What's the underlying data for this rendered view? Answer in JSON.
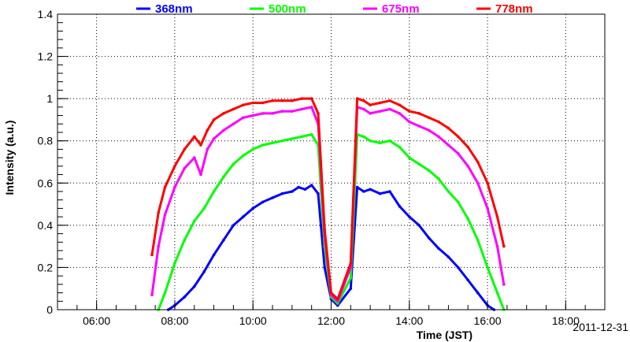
{
  "chart_data": {
    "type": "scatter",
    "title": "",
    "xlabel": "Time (JST)",
    "ylabel": "Intensity (a.u.)",
    "date_label": "2011-12-31",
    "xlim": [
      "05:00",
      "19:00"
    ],
    "ylim": [
      0,
      1.4
    ],
    "grid": true,
    "legend_position": "top",
    "x_ticks": [
      "06:00",
      "08:00",
      "10:00",
      "12:00",
      "14:00",
      "16:00",
      "18:00"
    ],
    "y_ticks": [
      "0",
      "0.2",
      "0.4",
      "0.6",
      "0.8",
      "1",
      "1.2",
      "1.4"
    ],
    "series": [
      {
        "name": "368nm",
        "color": "#0000ff",
        "points": [
          [
            "07:50",
            0.0
          ],
          [
            "08:00",
            0.02
          ],
          [
            "08:15",
            0.06
          ],
          [
            "08:30",
            0.11
          ],
          [
            "08:45",
            0.18
          ],
          [
            "09:00",
            0.26
          ],
          [
            "09:15",
            0.33
          ],
          [
            "09:30",
            0.4
          ],
          [
            "09:45",
            0.44
          ],
          [
            "10:00",
            0.48
          ],
          [
            "10:15",
            0.51
          ],
          [
            "10:30",
            0.53
          ],
          [
            "10:45",
            0.55
          ],
          [
            "11:00",
            0.56
          ],
          [
            "11:10",
            0.58
          ],
          [
            "11:20",
            0.57
          ],
          [
            "11:30",
            0.59
          ],
          [
            "11:40",
            0.55
          ],
          [
            "11:50",
            0.2
          ],
          [
            "12:00",
            0.05
          ],
          [
            "12:10",
            0.02
          ],
          [
            "12:30",
            0.1
          ],
          [
            "12:40",
            0.58
          ],
          [
            "12:50",
            0.56
          ],
          [
            "13:00",
            0.57
          ],
          [
            "13:15",
            0.55
          ],
          [
            "13:30",
            0.56
          ],
          [
            "13:45",
            0.49
          ],
          [
            "14:00",
            0.44
          ],
          [
            "14:15",
            0.4
          ],
          [
            "14:30",
            0.34
          ],
          [
            "14:45",
            0.29
          ],
          [
            "15:00",
            0.25
          ],
          [
            "15:15",
            0.2
          ],
          [
            "15:30",
            0.14
          ],
          [
            "15:45",
            0.08
          ],
          [
            "16:00",
            0.02
          ],
          [
            "16:10",
            0.0
          ]
        ]
      },
      {
        "name": "500nm",
        "color": "#00ff00",
        "points": [
          [
            "07:35",
            0.0
          ],
          [
            "07:45",
            0.08
          ],
          [
            "08:00",
            0.22
          ],
          [
            "08:15",
            0.33
          ],
          [
            "08:30",
            0.42
          ],
          [
            "08:45",
            0.48
          ],
          [
            "09:00",
            0.56
          ],
          [
            "09:15",
            0.63
          ],
          [
            "09:30",
            0.69
          ],
          [
            "09:45",
            0.73
          ],
          [
            "10:00",
            0.76
          ],
          [
            "10:15",
            0.78
          ],
          [
            "10:30",
            0.79
          ],
          [
            "10:45",
            0.8
          ],
          [
            "11:00",
            0.81
          ],
          [
            "11:15",
            0.82
          ],
          [
            "11:30",
            0.83
          ],
          [
            "11:40",
            0.78
          ],
          [
            "11:50",
            0.3
          ],
          [
            "12:00",
            0.06
          ],
          [
            "12:10",
            0.03
          ],
          [
            "12:30",
            0.15
          ],
          [
            "12:40",
            0.83
          ],
          [
            "12:50",
            0.82
          ],
          [
            "13:00",
            0.8
          ],
          [
            "13:15",
            0.79
          ],
          [
            "13:30",
            0.8
          ],
          [
            "13:45",
            0.77
          ],
          [
            "14:00",
            0.72
          ],
          [
            "14:15",
            0.69
          ],
          [
            "14:30",
            0.66
          ],
          [
            "14:45",
            0.62
          ],
          [
            "15:00",
            0.56
          ],
          [
            "15:15",
            0.51
          ],
          [
            "15:30",
            0.43
          ],
          [
            "15:45",
            0.33
          ],
          [
            "16:00",
            0.2
          ],
          [
            "16:15",
            0.08
          ],
          [
            "16:25",
            0.0
          ]
        ]
      },
      {
        "name": "675nm",
        "color": "#ff00ff",
        "points": [
          [
            "07:25",
            0.07
          ],
          [
            "07:35",
            0.3
          ],
          [
            "07:45",
            0.45
          ],
          [
            "08:00",
            0.58
          ],
          [
            "08:15",
            0.67
          ],
          [
            "08:30",
            0.72
          ],
          [
            "08:40",
            0.64
          ],
          [
            "08:50",
            0.76
          ],
          [
            "09:00",
            0.81
          ],
          [
            "09:15",
            0.85
          ],
          [
            "09:30",
            0.88
          ],
          [
            "09:45",
            0.91
          ],
          [
            "10:00",
            0.92
          ],
          [
            "10:15",
            0.93
          ],
          [
            "10:30",
            0.93
          ],
          [
            "10:45",
            0.94
          ],
          [
            "11:00",
            0.94
          ],
          [
            "11:15",
            0.95
          ],
          [
            "11:30",
            0.96
          ],
          [
            "11:40",
            0.88
          ],
          [
            "11:50",
            0.35
          ],
          [
            "12:00",
            0.07
          ],
          [
            "12:10",
            0.04
          ],
          [
            "12:30",
            0.2
          ],
          [
            "12:40",
            0.96
          ],
          [
            "12:50",
            0.95
          ],
          [
            "13:00",
            0.93
          ],
          [
            "13:15",
            0.94
          ],
          [
            "13:30",
            0.95
          ],
          [
            "13:45",
            0.93
          ],
          [
            "14:00",
            0.89
          ],
          [
            "14:15",
            0.87
          ],
          [
            "14:30",
            0.85
          ],
          [
            "14:45",
            0.82
          ],
          [
            "15:00",
            0.78
          ],
          [
            "15:15",
            0.74
          ],
          [
            "15:30",
            0.68
          ],
          [
            "15:45",
            0.6
          ],
          [
            "16:00",
            0.48
          ],
          [
            "16:15",
            0.3
          ],
          [
            "16:25",
            0.12
          ]
        ]
      },
      {
        "name": "778nm",
        "color": "#ff0000",
        "points": [
          [
            "07:25",
            0.26
          ],
          [
            "07:35",
            0.46
          ],
          [
            "07:45",
            0.58
          ],
          [
            "08:00",
            0.68
          ],
          [
            "08:15",
            0.76
          ],
          [
            "08:30",
            0.82
          ],
          [
            "08:40",
            0.78
          ],
          [
            "08:50",
            0.85
          ],
          [
            "09:00",
            0.9
          ],
          [
            "09:15",
            0.93
          ],
          [
            "09:30",
            0.95
          ],
          [
            "09:45",
            0.97
          ],
          [
            "10:00",
            0.98
          ],
          [
            "10:15",
            0.98
          ],
          [
            "10:30",
            0.99
          ],
          [
            "10:45",
            0.99
          ],
          [
            "11:00",
            0.99
          ],
          [
            "11:15",
            1.0
          ],
          [
            "11:30",
            1.0
          ],
          [
            "11:40",
            0.93
          ],
          [
            "11:50",
            0.38
          ],
          [
            "12:00",
            0.08
          ],
          [
            "12:10",
            0.05
          ],
          [
            "12:30",
            0.22
          ],
          [
            "12:40",
            1.0
          ],
          [
            "12:50",
            0.99
          ],
          [
            "13:00",
            0.97
          ],
          [
            "13:15",
            0.98
          ],
          [
            "13:30",
            0.99
          ],
          [
            "13:45",
            0.97
          ],
          [
            "14:00",
            0.94
          ],
          [
            "14:15",
            0.93
          ],
          [
            "14:30",
            0.91
          ],
          [
            "14:45",
            0.89
          ],
          [
            "15:00",
            0.86
          ],
          [
            "15:15",
            0.82
          ],
          [
            "15:30",
            0.77
          ],
          [
            "15:45",
            0.7
          ],
          [
            "16:00",
            0.6
          ],
          [
            "16:15",
            0.44
          ],
          [
            "16:25",
            0.3
          ]
        ]
      }
    ]
  }
}
